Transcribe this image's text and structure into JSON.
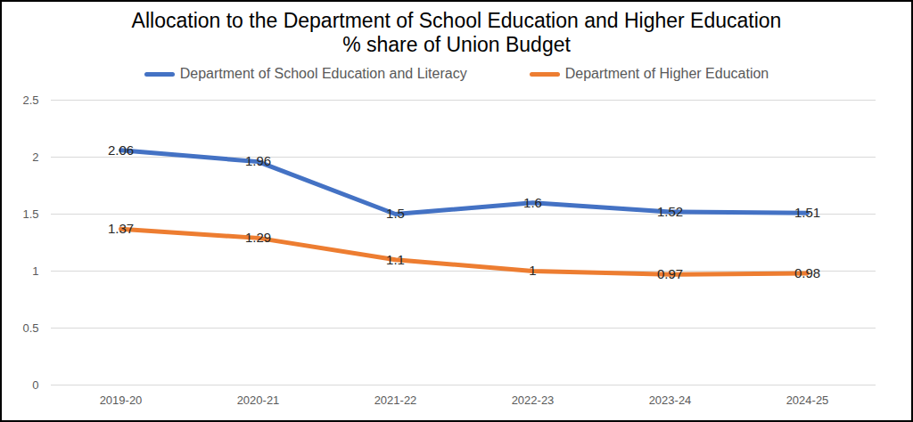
{
  "chart_data": {
    "type": "line",
    "title": "Allocation to the Department of School Education and Higher Education",
    "subtitle": "% share of Union Budget",
    "categories": [
      "2019-20",
      "2020-21",
      "2021-22",
      "2022-23",
      "2023-24",
      "2024-25"
    ],
    "series": [
      {
        "name": "Department of School Education and Literacy",
        "color": "#4472c4",
        "values": [
          2.06,
          1.96,
          1.5,
          1.6,
          1.52,
          1.51
        ]
      },
      {
        "name": "Department of Higher Education",
        "color": "#ed7d31",
        "values": [
          1.37,
          1.29,
          1.1,
          1,
          0.97,
          0.98
        ]
      }
    ],
    "ylim": [
      0,
      2.5
    ],
    "yticks": [
      0,
      0.5,
      1,
      1.5,
      2,
      2.5
    ],
    "grid": true,
    "legend": "top",
    "data_labels": true
  }
}
